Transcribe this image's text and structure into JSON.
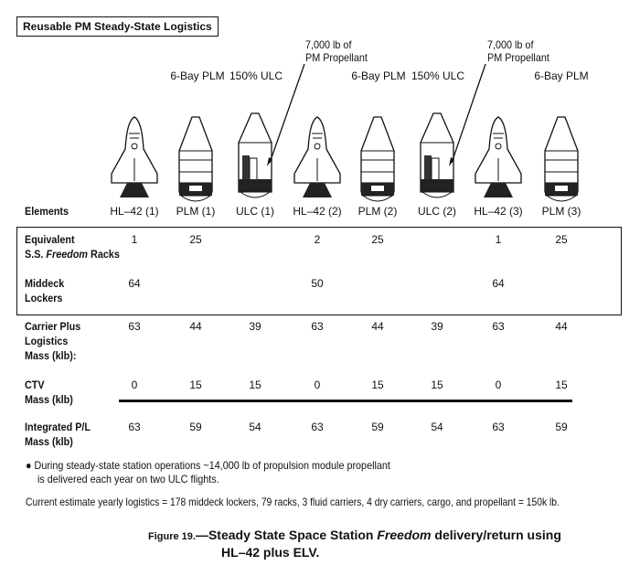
{
  "title": "Reusable PM Steady-State Logistics",
  "top_labels": {
    "plm": "6-Bay PLM",
    "ulc": "150% ULC",
    "prop_line1": "7,000 lb of",
    "prop_line2": "PM Propellant"
  },
  "elements_label": "Elements",
  "columns": [
    "HL–42 (1)",
    "PLM (1)",
    "ULC (1)",
    "HL–42 (2)",
    "PLM (2)",
    "ULC (2)",
    "HL–42 (3)",
    "PLM (3)"
  ],
  "icons": [
    "shuttle-icon",
    "plm-rocket-icon",
    "ulc-rocket-icon",
    "shuttle-icon",
    "plm-rocket-icon",
    "ulc-rocket-icon",
    "shuttle-icon",
    "plm-rocket-icon"
  ],
  "rows": {
    "racks": {
      "l1": "Equivalent",
      "l2a": "S.S. ",
      "l2b": "Freedom",
      "l2c": " Racks",
      "values": [
        "1",
        "25",
        "",
        "2",
        "25",
        "",
        "1",
        "25"
      ]
    },
    "lockers": {
      "l1": "Middeck",
      "l2": "Lockers",
      "values": [
        "64",
        "",
        "",
        "50",
        "",
        "",
        "64",
        ""
      ]
    },
    "carrier": {
      "l1": "Carrier Plus",
      "l2": "Logistics",
      "l3": "Mass (klb):",
      "values": [
        "63",
        "44",
        "39",
        "63",
        "44",
        "39",
        "63",
        "44"
      ]
    },
    "ctv": {
      "l1": "CTV",
      "l2": "Mass (klb)",
      "values": [
        "0",
        "15",
        "15",
        "0",
        "15",
        "15",
        "0",
        "15"
      ]
    },
    "integrated": {
      "l1": "Integrated P/L",
      "l2": "Mass (klb)",
      "values": [
        "63",
        "59",
        "54",
        "63",
        "59",
        "54",
        "63",
        "59"
      ]
    }
  },
  "notes": {
    "bullet_l1": "During steady-state station operations ~14,000 lb of propulsion module propellant",
    "bullet_l2": "is delivered each year on two ULC flights.",
    "estimate": "Current estimate yearly logistics = 178 middeck lockers, 79 racks, 3 fluid carriers, 4 dry carriers, cargo, and propellant = 150k lb."
  },
  "caption": {
    "fig": "Figure 19.",
    "p1": "—Steady State Space Station ",
    "italic": "Freedom",
    "p2": " delivery/return using",
    "l2": "HL–42 plus ELV."
  }
}
